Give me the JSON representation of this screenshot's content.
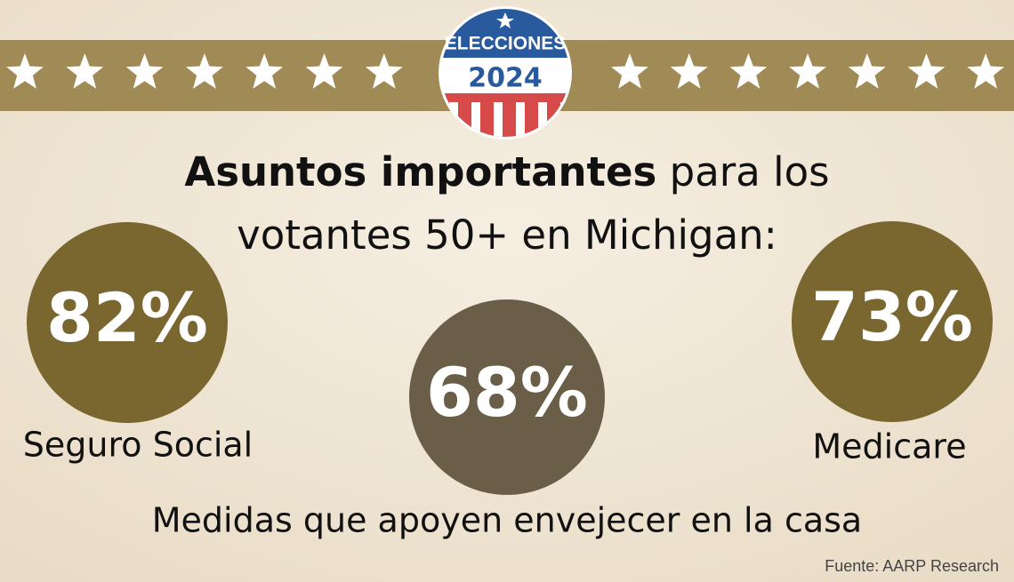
{
  "badge": {
    "top": "ELECCIONES",
    "year": "2024"
  },
  "title": {
    "bold": "Asuntos importantes",
    "line1_rest": "para los",
    "line2": "votantes 50+ en Michigan:"
  },
  "items": [
    {
      "value": "82%",
      "label": "Seguro Social"
    },
    {
      "value": "68%",
      "label": "Medidas que apoyen envejecer en la casa"
    },
    {
      "value": "73%",
      "label": "Medicare"
    }
  ],
  "source": "Fuente: AARP Research"
}
